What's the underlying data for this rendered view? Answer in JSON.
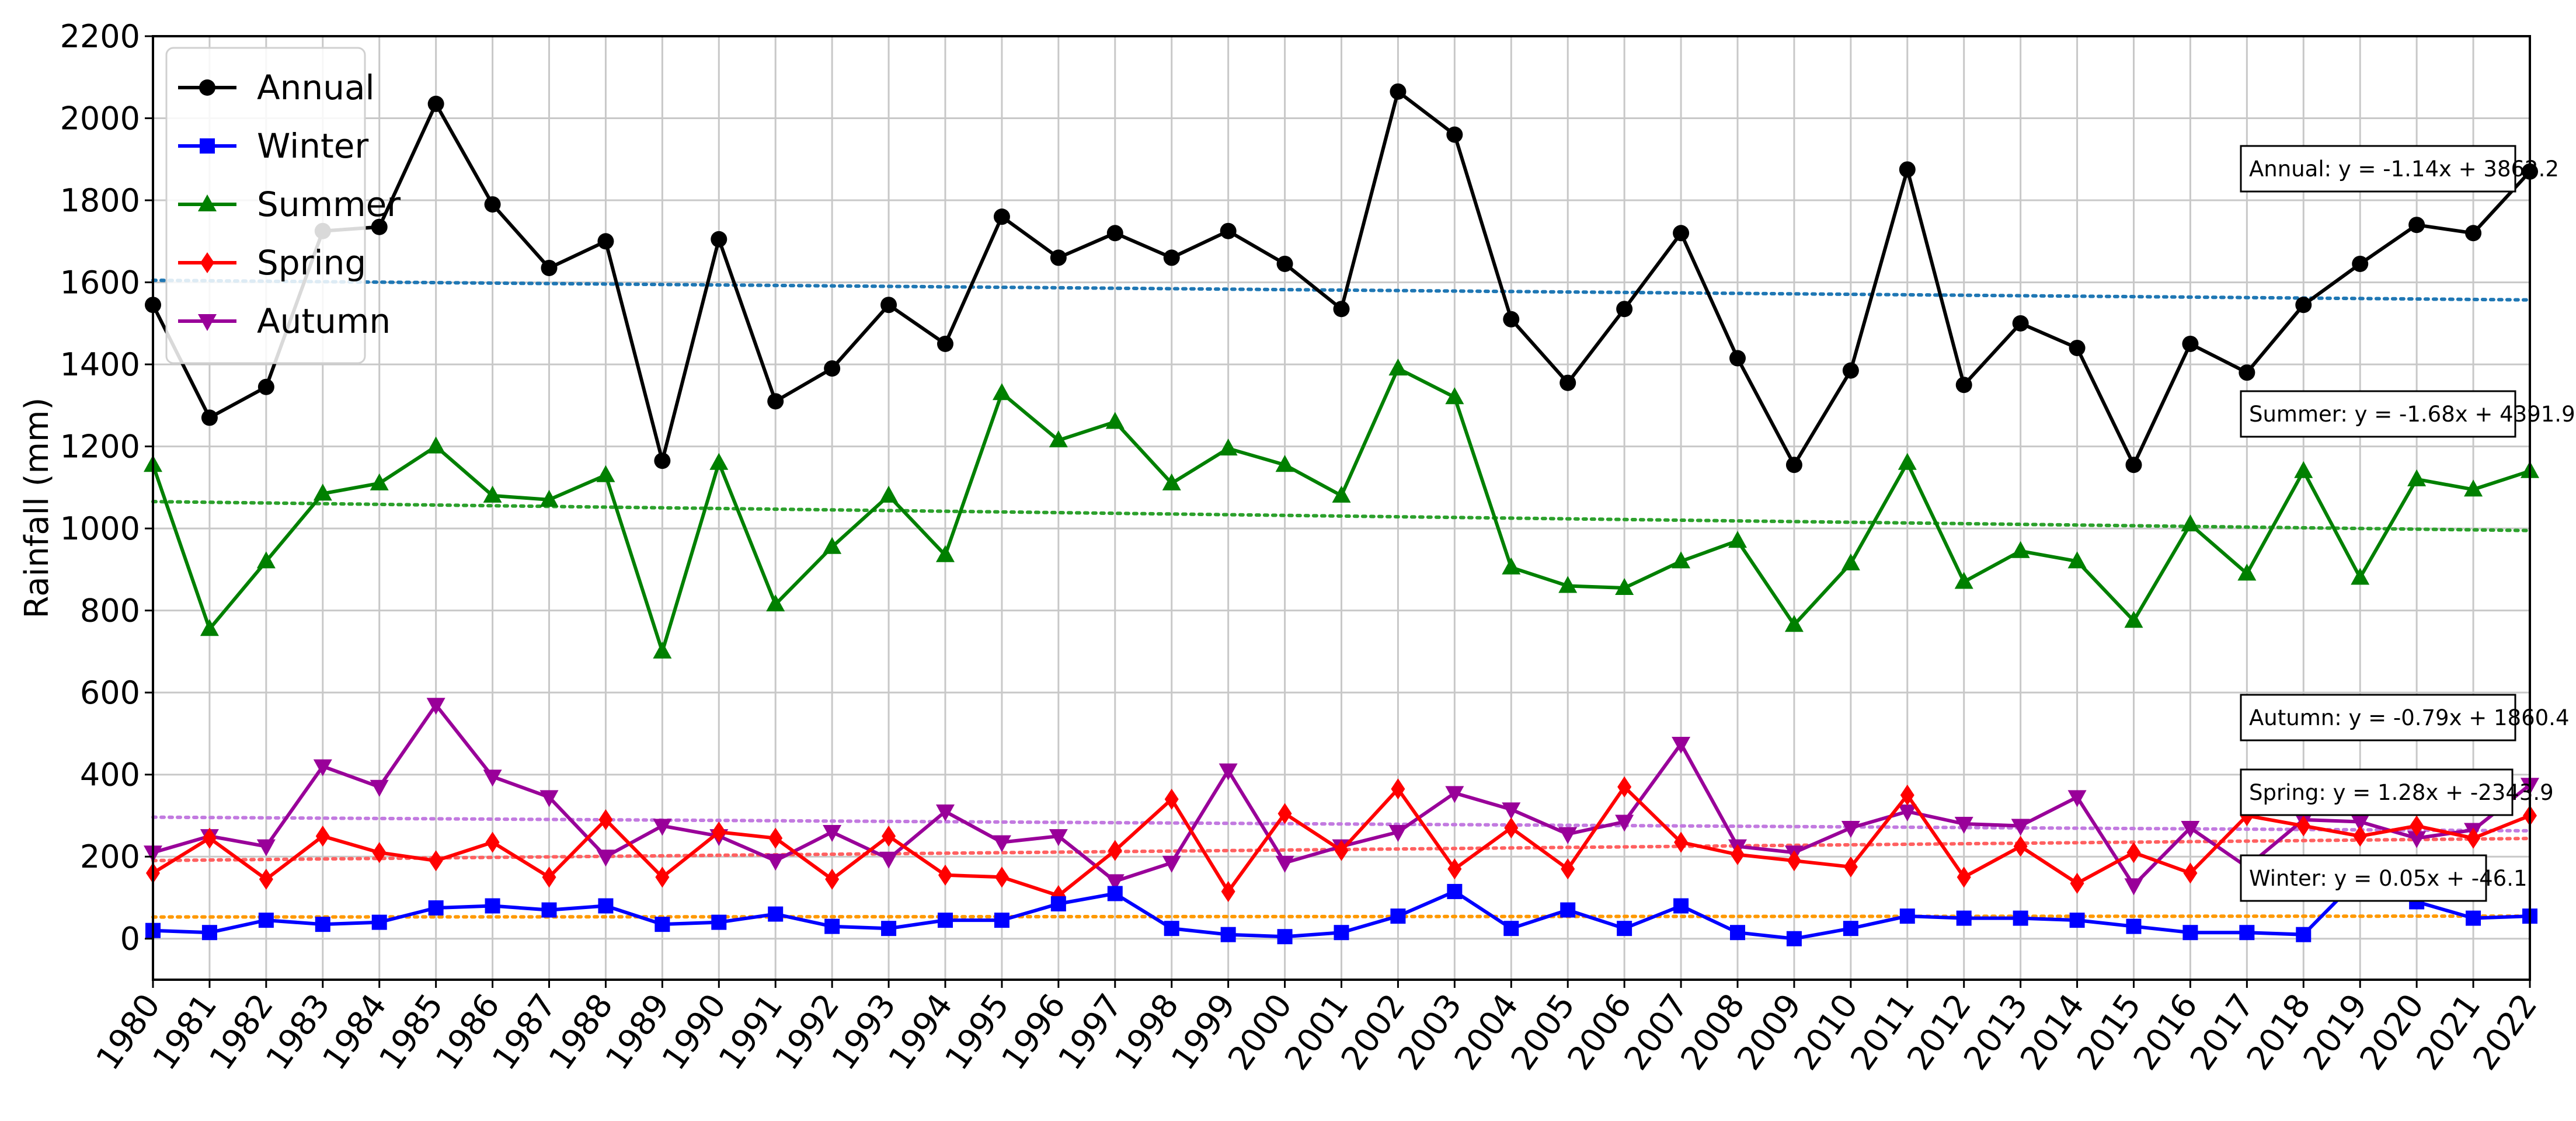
{
  "chart_data": {
    "type": "line",
    "title": "",
    "xlabel": "",
    "ylabel": "Rainfall (mm)",
    "xlim": [
      1980,
      2022
    ],
    "ylim": [
      -100,
      2200
    ],
    "yticks": [
      0,
      200,
      400,
      600,
      800,
      1000,
      1200,
      1400,
      1600,
      1800,
      2000,
      2200
    ],
    "grid": true,
    "legend_position": "top-left",
    "x": [
      1980,
      1981,
      1982,
      1983,
      1984,
      1985,
      1986,
      1987,
      1988,
      1989,
      1990,
      1991,
      1992,
      1993,
      1994,
      1995,
      1996,
      1997,
      1998,
      1999,
      2000,
      2001,
      2002,
      2003,
      2004,
      2005,
      2006,
      2007,
      2008,
      2009,
      2010,
      2011,
      2012,
      2013,
      2014,
      2015,
      2016,
      2017,
      2018,
      2019,
      2020,
      2021,
      2022
    ],
    "series": [
      {
        "name": "Annual",
        "color": "#000000",
        "marker": "circle",
        "values": [
          1545,
          1270,
          1345,
          1725,
          1735,
          2035,
          1790,
          1635,
          1700,
          1165,
          1705,
          1310,
          1390,
          1545,
          1450,
          1760,
          1660,
          1720,
          1660,
          1725,
          1645,
          1535,
          2065,
          1960,
          1510,
          1355,
          1535,
          1720,
          1415,
          1155,
          1385,
          1875,
          1350,
          1500,
          1440,
          1155,
          1450,
          1380,
          1545,
          1645,
          1740,
          1720,
          1870
        ]
      },
      {
        "name": "Winter",
        "color": "#0000ff",
        "marker": "square",
        "values": [
          20,
          15,
          45,
          35,
          40,
          75,
          80,
          70,
          80,
          35,
          40,
          60,
          30,
          25,
          45,
          45,
          85,
          110,
          25,
          10,
          5,
          15,
          55,
          115,
          25,
          70,
          25,
          80,
          15,
          0,
          25,
          55,
          50,
          50,
          45,
          30,
          15,
          15,
          10,
          150,
          90,
          50,
          55
        ]
      },
      {
        "name": "Summer",
        "color": "#008000",
        "marker": "triangle-up",
        "values": [
          1155,
          755,
          920,
          1085,
          1110,
          1200,
          1080,
          1070,
          1130,
          700,
          1160,
          815,
          955,
          1080,
          935,
          1330,
          1215,
          1260,
          1110,
          1195,
          1155,
          1080,
          1390,
          1320,
          905,
          860,
          855,
          920,
          970,
          765,
          915,
          1160,
          870,
          945,
          920,
          775,
          1010,
          890,
          1140,
          880,
          1120,
          1095,
          1140
        ]
      },
      {
        "name": "Spring",
        "color": "#ff0000",
        "marker": "diamond",
        "values": [
          160,
          245,
          145,
          250,
          210,
          190,
          235,
          150,
          290,
          150,
          260,
          245,
          145,
          250,
          155,
          150,
          105,
          215,
          340,
          115,
          305,
          215,
          365,
          170,
          270,
          170,
          370,
          235,
          205,
          190,
          175,
          350,
          150,
          225,
          135,
          210,
          160,
          300,
          275,
          250,
          275,
          245,
          300
        ]
      },
      {
        "name": "Autumn",
        "color": "#990099",
        "marker": "triangle-down",
        "values": [
          210,
          250,
          225,
          420,
          370,
          570,
          395,
          345,
          200,
          275,
          250,
          190,
          260,
          195,
          310,
          235,
          250,
          140,
          185,
          410,
          185,
          225,
          260,
          355,
          315,
          255,
          285,
          475,
          225,
          210,
          270,
          310,
          280,
          275,
          345,
          130,
          270,
          175,
          290,
          285,
          245,
          265,
          375
        ]
      }
    ],
    "trendlines": [
      {
        "series": "Annual",
        "color": "#1f77b4",
        "label": "Annual: y = -1.14x + 3862.2",
        "slope": -1.14,
        "intercept": 3862.2
      },
      {
        "series": "Summer",
        "color": "#2ca02c",
        "label": "Summer: y = -1.68x + 4391.9",
        "slope": -1.68,
        "intercept": 4391.9
      },
      {
        "series": "Autumn",
        "color": "#c27ae0",
        "label": "Autumn: y = -0.79x + 1860.4",
        "slope": -0.79,
        "intercept": 1860.4
      },
      {
        "series": "Spring",
        "color": "#ff6060",
        "label": "Spring: y = 1.28x + -2343.9",
        "slope": 1.28,
        "intercept": -2343.9
      },
      {
        "series": "Winter",
        "color": "#ff9900",
        "label": "Winter: y = 0.05x + -46.1",
        "slope": 0.05,
        "intercept": -46.1
      }
    ]
  }
}
